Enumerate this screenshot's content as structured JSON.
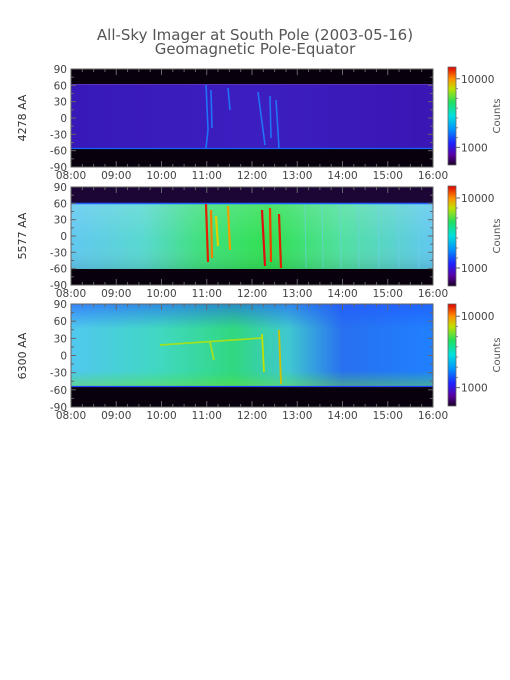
{
  "title": "All-Sky Imager at South Pole (2003-05-16)",
  "subtitle": "Geomagnetic Pole-Equator",
  "chart_data": {
    "type": "heatmap",
    "title": "All-Sky Imager at South Pole (2003-05-16)",
    "subtitle": "Geomagnetic Pole-Equator",
    "x_ticks": [
      "08:00",
      "09:00",
      "10:00",
      "11:00",
      "12:00",
      "13:00",
      "14:00",
      "15:00",
      "16:00"
    ],
    "xlim": [
      "08:00",
      "16:00"
    ],
    "y_ticks": [
      90,
      60,
      30,
      0,
      -30,
      -60,
      -90
    ],
    "ylim": [
      -90,
      90
    ],
    "colorbar_label": "Counts",
    "colorbar_ticks": [
      10000,
      1000
    ],
    "colorbar_tick_labels": [
      "10000",
      "1000"
    ],
    "panels": [
      {
        "ylabel": "4278 AA",
        "data_rows": [
          60,
          -55
        ],
        "background_level": "low (violet)",
        "events": [
          {
            "time": "11:00",
            "level": "medium"
          },
          {
            "time": "11:30",
            "level": "medium"
          },
          {
            "time": "12:15",
            "level": "medium"
          },
          {
            "time": "12:30",
            "level": "medium"
          },
          {
            "time": "12:40",
            "level": "medium"
          }
        ]
      },
      {
        "ylabel": "5577 AA",
        "data_rows": [
          60,
          -55
        ],
        "background_level": "medium-high (cyan/green)",
        "events": [
          {
            "time": "11:00",
            "level": "high"
          },
          {
            "time": "11:20",
            "level": "high"
          },
          {
            "time": "11:30",
            "level": "high"
          },
          {
            "time": "12:10",
            "level": "high"
          },
          {
            "time": "12:25",
            "level": "high"
          },
          {
            "time": "12:40",
            "level": "high"
          }
        ]
      },
      {
        "ylabel": "6300 AA",
        "data_rows": [
          90,
          -55
        ],
        "background_level": "medium (cyan/green), decreasing after 13:00",
        "events": [
          {
            "time": "11:30",
            "level": "medium-high"
          },
          {
            "time": "12:00",
            "level": "medium-high"
          },
          {
            "time": "12:40",
            "level": "medium-high"
          }
        ]
      }
    ]
  }
}
